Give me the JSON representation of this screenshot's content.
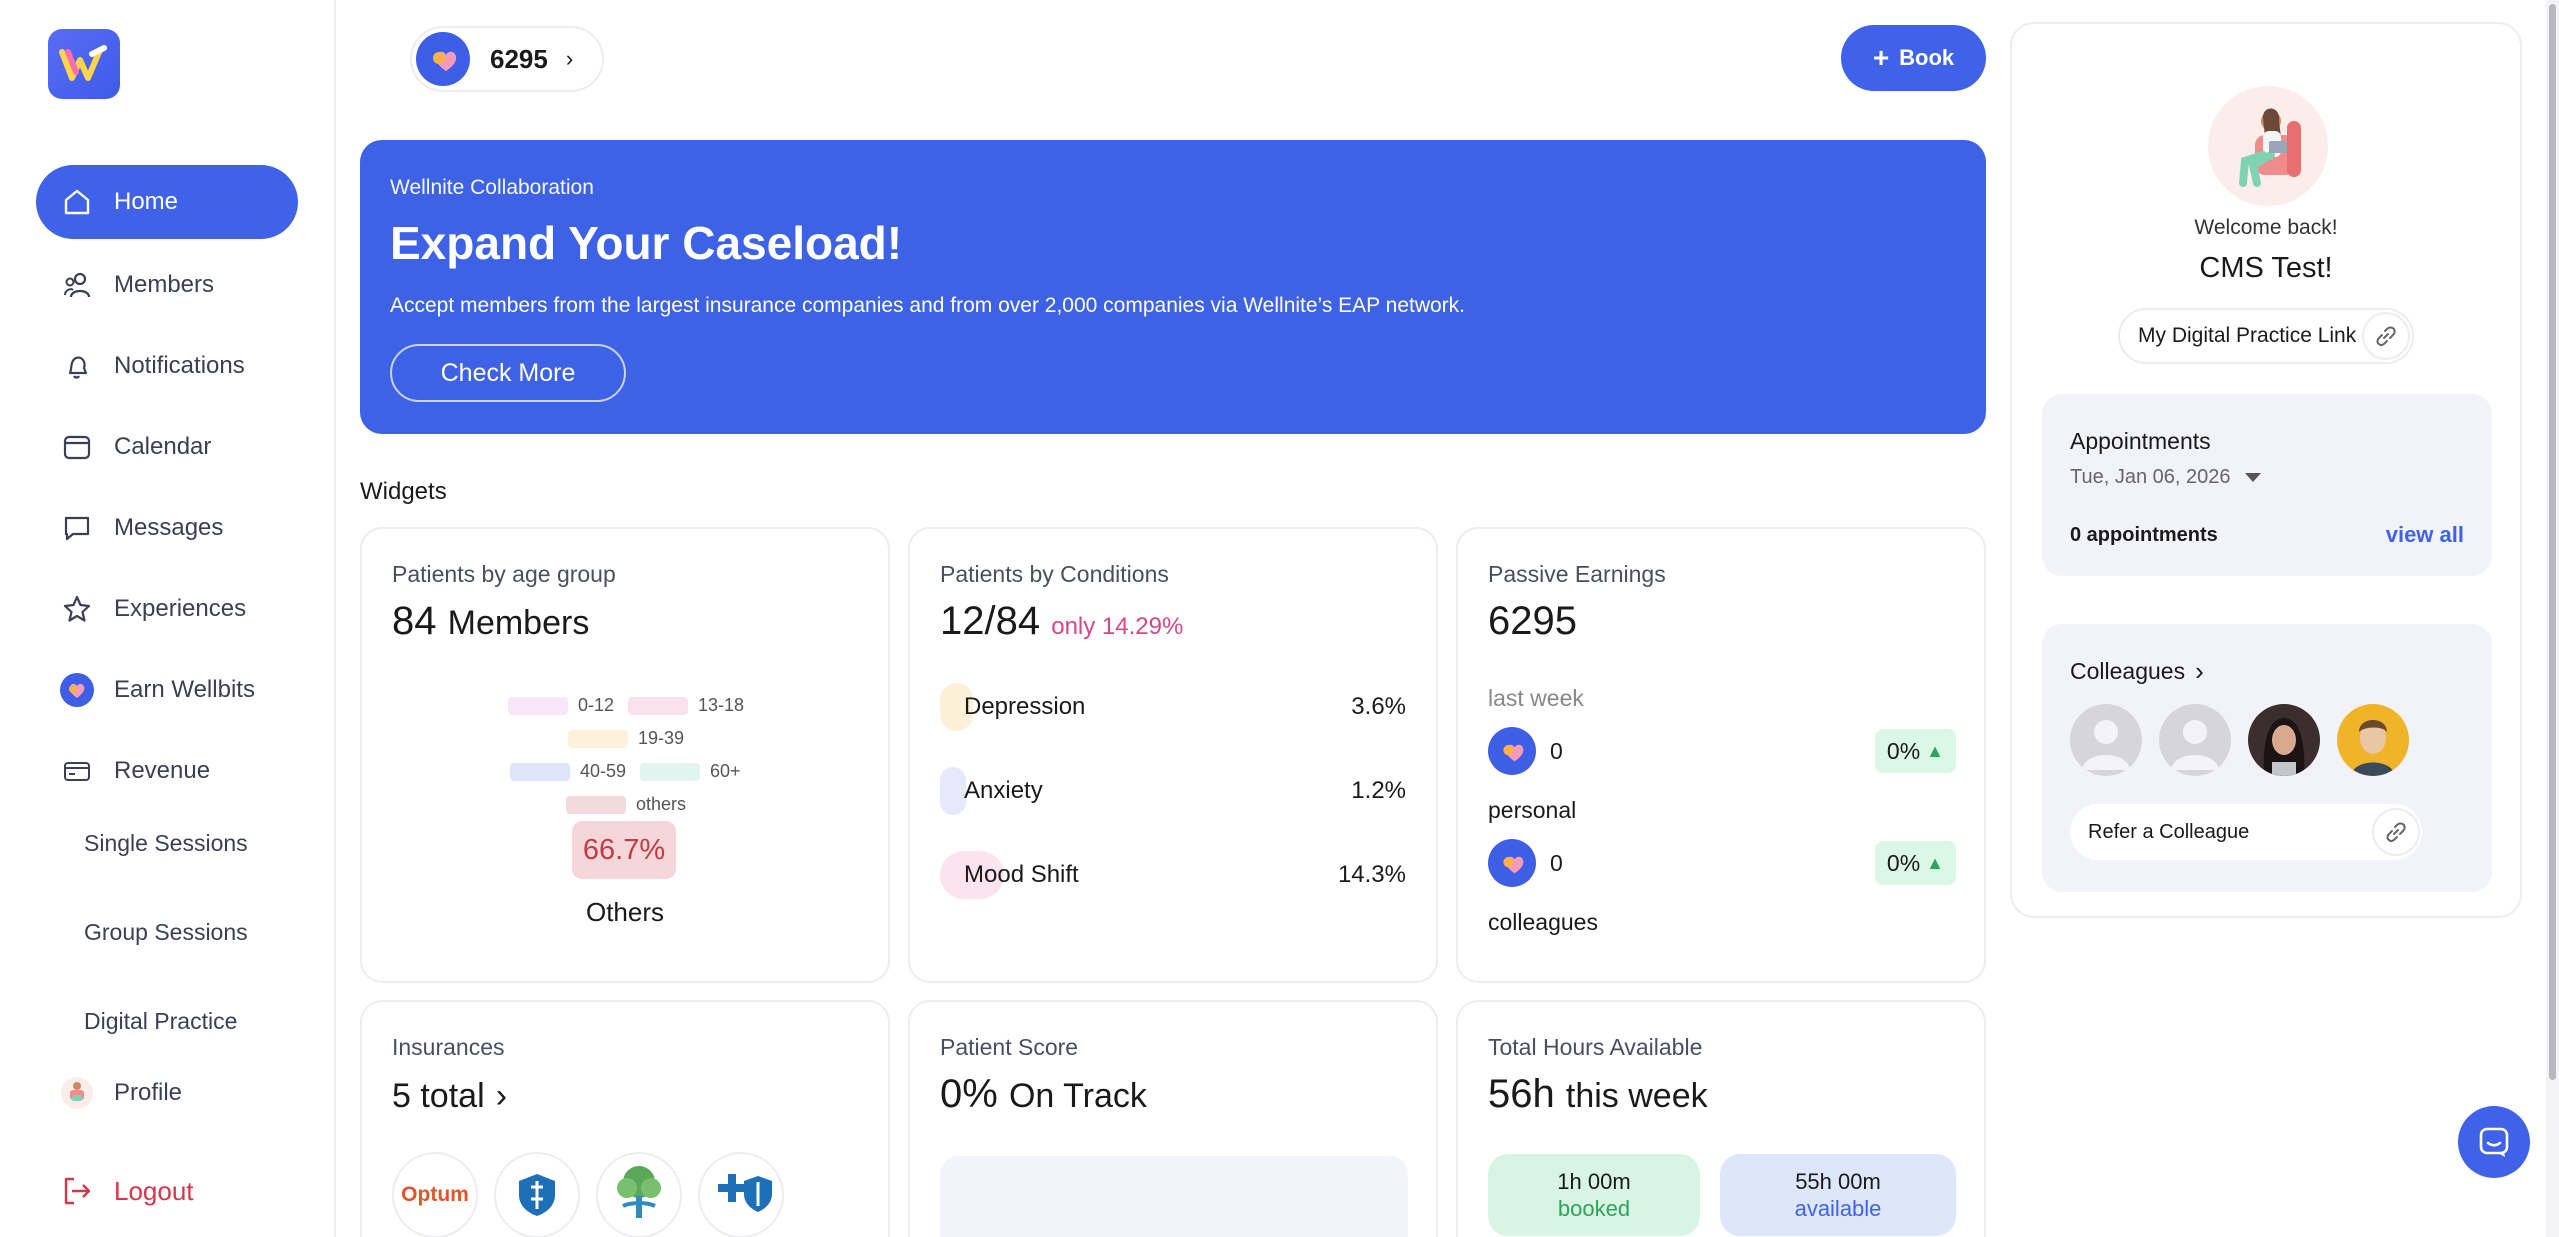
{
  "sidebar": {
    "items": [
      {
        "label": "Home",
        "icon": "home-icon"
      },
      {
        "label": "Members",
        "icon": "members-icon"
      },
      {
        "label": "Notifications",
        "icon": "bell-icon"
      },
      {
        "label": "Calendar",
        "icon": "calendar-icon"
      },
      {
        "label": "Messages",
        "icon": "message-icon"
      },
      {
        "label": "Experiences",
        "icon": "star-icon"
      },
      {
        "label": "Earn Wellbits",
        "icon": "wellbits-coin-icon"
      },
      {
        "label": "Revenue",
        "icon": "card-icon"
      }
    ],
    "sub_items": [
      "Single Sessions",
      "Group Sessions",
      "Digital Practice"
    ],
    "profile_label": "Profile",
    "logout_label": "Logout",
    "accent": "#3f62e8",
    "logout_color": "#d6364a"
  },
  "topbar": {
    "points": "6295",
    "book_label": "Book"
  },
  "banner": {
    "eyebrow": "Wellnite Collaboration",
    "headline": "Expand Your Caseload!",
    "description": "Accept members from the largest insurance companies and from over 2,000 companies via Wellnite’s EAP network.",
    "cta": "Check More",
    "background": "#3e62e6"
  },
  "widgets": {
    "section_title": "Widgets",
    "age_group": {
      "title": "Patients by age group",
      "count": "84",
      "unit": "Members",
      "legend": [
        {
          "label": "0-12",
          "color": "#f7e6f7"
        },
        {
          "label": "13-18",
          "color": "#fbe1ee"
        },
        {
          "label": "19-39",
          "color": "#fdf1dc"
        },
        {
          "label": "40-59",
          "color": "#dfe5fb"
        },
        {
          "label": "60+",
          "color": "#e2f4ef"
        },
        {
          "label": "others",
          "color": "#f3dadd"
        }
      ],
      "highlight_pct": "66.7%",
      "highlight_label": "Others"
    },
    "conditions": {
      "title": "Patients by Conditions",
      "ratio": "12/84",
      "sub": "only 14.29%",
      "rows": [
        {
          "name": "Depression",
          "pct": "3.6%",
          "value": 3.6,
          "color": "#fdf0d8"
        },
        {
          "name": "Anxiety",
          "pct": "1.2%",
          "value": 1.2,
          "color": "#e4e9fb"
        },
        {
          "name": "Mood Shift",
          "pct": "14.3%",
          "value": 14.3,
          "color": "#fbe4ee"
        }
      ]
    },
    "earnings": {
      "title": "Passive Earnings",
      "total": "6295",
      "period": "last week",
      "rows": [
        {
          "value": "0",
          "trend": "0%",
          "label": "personal"
        },
        {
          "value": "0",
          "trend": "0%",
          "label": "colleagues"
        }
      ]
    },
    "insurances": {
      "title": "Insurances",
      "total": "5 total",
      "logos": [
        {
          "name": "Optum",
          "icon": "optum-logo"
        },
        {
          "name": "",
          "icon": "blue-shield-logo"
        },
        {
          "name": "",
          "icon": "tree-person-logo"
        },
        {
          "name": "",
          "icon": "blue-cross-blue-shield-logo"
        }
      ]
    },
    "patient_score": {
      "title": "Patient Score",
      "value": "0%",
      "unit": "On Track"
    },
    "hours": {
      "title": "Total Hours Available",
      "value": "56h",
      "unit": "this week",
      "booked_value": "1h 00m",
      "booked_label": "booked",
      "available_value": "55h 00m",
      "available_label": "available"
    }
  },
  "right_panel": {
    "welcome": "Welcome back!",
    "name": "CMS Test!",
    "digital_link_label": "My Digital Practice Link",
    "appointments": {
      "title": "Appointments",
      "date": "Tue, Jan 06, 2026",
      "count": "0 appointments",
      "view_all": "view all"
    },
    "colleagues": {
      "title": "Colleagues",
      "refer_label": "Refer a Colleague"
    }
  }
}
